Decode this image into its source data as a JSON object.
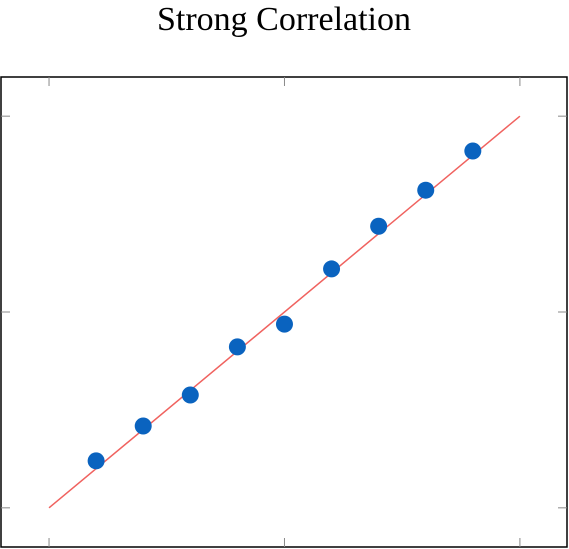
{
  "chart_data": {
    "type": "scatter",
    "title": "Strong Correlation",
    "x": [
      1,
      2,
      3,
      4,
      5,
      6,
      7,
      8,
      9
    ],
    "values": [
      1.2,
      2.09,
      2.88,
      4.11,
      4.69,
      6.1,
      7.19,
      8.11,
      9.11
    ],
    "color": "#0a63bf",
    "line": {
      "x": [
        0,
        10
      ],
      "values": [
        0,
        10
      ],
      "color": "#f0625f"
    },
    "xlim": [
      -1.02,
      11
    ],
    "ylim": [
      -1,
      11
    ],
    "xticks": [
      0,
      5,
      10
    ],
    "yticks": [
      0,
      5,
      10
    ]
  }
}
